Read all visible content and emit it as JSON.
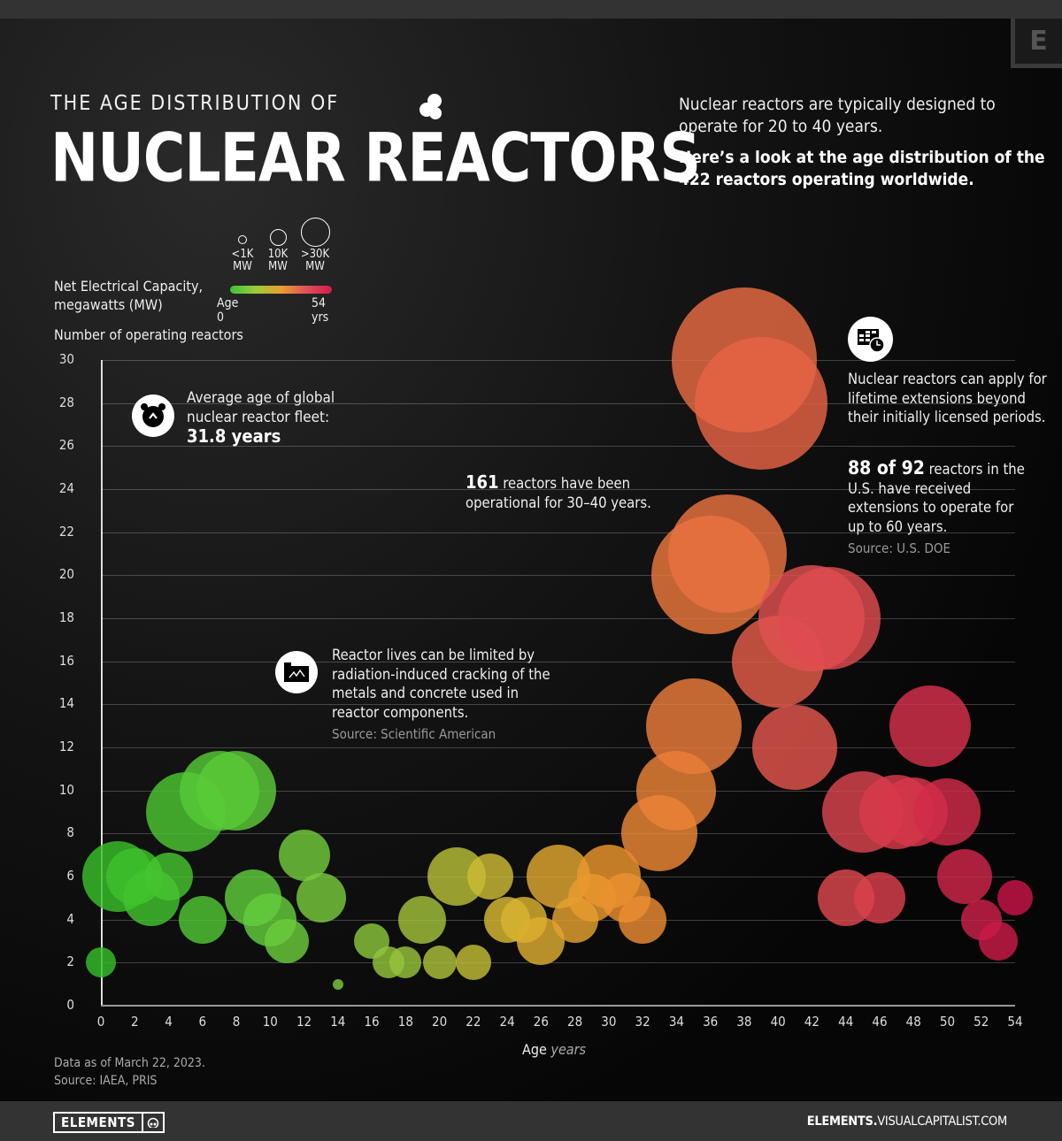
{
  "header": {
    "kicker": "THE AGE DISTRIBUTION OF",
    "title": "NUCLEAR REACTORS",
    "corner_badge": "E",
    "intro_line": "Nuclear reactors are typically designed to operate for 20 to 40 years.",
    "intro_bold": "Here’s a look at the age distribution of the 422 reactors operating worldwide."
  },
  "legend": {
    "size_title": "Net Electrical Capacity, megawatts (MW)",
    "sizes": [
      {
        "label1": "<1K",
        "label2": "MW"
      },
      {
        "label1": "10K",
        "label2": "MW"
      },
      {
        "label1": ">30K",
        "label2": "MW"
      }
    ],
    "color_start": "Age 0",
    "color_end": "54 yrs",
    "colors": {
      "start": "#3ac33a",
      "mid": "#e8a030",
      "end": "#d01e4a"
    }
  },
  "annotations": {
    "avg_age_text": "Average age of global nuclear reactor fleet:",
    "avg_age_value": "31.8 years",
    "ops_count": "161",
    "ops_text": " reactors have been operational for 30–40 years.",
    "cracking_text": "Reactor lives can be limited by radiation-induced cracking of the metals and concrete used in reactor components.",
    "cracking_source": "Source: Scientific American",
    "extension_text": "Nuclear reactors can apply for lifetime extensions beyond their initially licensed periods.",
    "us_count": "88 of 92",
    "us_text": " reactors in the U.S. have received extensions to operate for up to 60 years.",
    "us_source": "Source: U.S. DOE"
  },
  "footnote": {
    "date": "Data as of March 22, 2023.",
    "source": "Source: IAEA, PRIS"
  },
  "footer": {
    "brand": "ELEMENTS",
    "url_bold": "ELEMENTS.",
    "url_rest": "VISUALCAPITALIST.COM"
  },
  "chart_data": {
    "type": "scatter",
    "subtype": "bubble",
    "title": "The Age Distribution of Nuclear Reactors",
    "xlabel": "Age years",
    "ylabel": "Number of operating reactors",
    "xlim": [
      0,
      54
    ],
    "ylim": [
      0,
      30
    ],
    "x_ticks": [
      0,
      2,
      4,
      6,
      8,
      10,
      12,
      14,
      16,
      18,
      20,
      22,
      24,
      26,
      28,
      30,
      32,
      34,
      36,
      38,
      40,
      42,
      44,
      46,
      48,
      50,
      52,
      54
    ],
    "y_ticks": [
      0,
      2,
      4,
      6,
      8,
      10,
      12,
      14,
      16,
      18,
      20,
      22,
      24,
      26,
      28,
      30
    ],
    "grid": true,
    "size_encoding": "Net Electrical Capacity (MW)",
    "color_encoding": "Age (green=0 → red=54 yrs)",
    "points": [
      {
        "age": 0,
        "count": 2,
        "r": 17
      },
      {
        "age": 1,
        "count": 6,
        "r": 40
      },
      {
        "age": 2,
        "count": 6,
        "r": 32
      },
      {
        "age": 3,
        "count": 5,
        "r": 32
      },
      {
        "age": 4,
        "count": 6,
        "r": 27
      },
      {
        "age": 5,
        "count": 9,
        "r": 45
      },
      {
        "age": 6,
        "count": 4,
        "r": 27
      },
      {
        "age": 7,
        "count": 10,
        "r": 45
      },
      {
        "age": 8,
        "count": 10,
        "r": 45
      },
      {
        "age": 9,
        "count": 5,
        "r": 32
      },
      {
        "age": 10,
        "count": 4,
        "r": 30
      },
      {
        "age": 11,
        "count": 3,
        "r": 25
      },
      {
        "age": 12,
        "count": 7,
        "r": 29
      },
      {
        "age": 13,
        "count": 5,
        "r": 28
      },
      {
        "age": 14,
        "count": 1,
        "r": 6
      },
      {
        "age": 16,
        "count": 3,
        "r": 20
      },
      {
        "age": 17,
        "count": 2,
        "r": 18
      },
      {
        "age": 18,
        "count": 2,
        "r": 18
      },
      {
        "age": 19,
        "count": 4,
        "r": 27
      },
      {
        "age": 20,
        "count": 2,
        "r": 19
      },
      {
        "age": 21,
        "count": 6,
        "r": 33
      },
      {
        "age": 22,
        "count": 2,
        "r": 20
      },
      {
        "age": 23,
        "count": 6,
        "r": 26
      },
      {
        "age": 24,
        "count": 4,
        "r": 26
      },
      {
        "age": 25,
        "count": 4,
        "r": 26
      },
      {
        "age": 26,
        "count": 3,
        "r": 27
      },
      {
        "age": 27,
        "count": 6,
        "r": 36
      },
      {
        "age": 28,
        "count": 4,
        "r": 26
      },
      {
        "age": 29,
        "count": 5,
        "r": 27
      },
      {
        "age": 30,
        "count": 6,
        "r": 36
      },
      {
        "age": 31,
        "count": 5,
        "r": 28
      },
      {
        "age": 32,
        "count": 4,
        "r": 27
      },
      {
        "age": 33,
        "count": 8,
        "r": 43
      },
      {
        "age": 34,
        "count": 10,
        "r": 45
      },
      {
        "age": 35,
        "count": 13,
        "r": 54
      },
      {
        "age": 36,
        "count": 20,
        "r": 67
      },
      {
        "age": 37,
        "count": 21,
        "r": 67
      },
      {
        "age": 38,
        "count": 30,
        "r": 82
      },
      {
        "age": 39,
        "count": 28,
        "r": 75
      },
      {
        "age": 40,
        "count": 16,
        "r": 52
      },
      {
        "age": 41,
        "count": 12,
        "r": 48
      },
      {
        "age": 42,
        "count": 18,
        "r": 60
      },
      {
        "age": 43,
        "count": 18,
        "r": 58
      },
      {
        "age": 44,
        "count": 5,
        "r": 32
      },
      {
        "age": 45,
        "count": 9,
        "r": 46
      },
      {
        "age": 46,
        "count": 5,
        "r": 29
      },
      {
        "age": 47,
        "count": 9,
        "r": 42
      },
      {
        "age": 48,
        "count": 9,
        "r": 39
      },
      {
        "age": 49,
        "count": 13,
        "r": 46
      },
      {
        "age": 50,
        "count": 9,
        "r": 38
      },
      {
        "age": 51,
        "count": 6,
        "r": 31
      },
      {
        "age": 52,
        "count": 4,
        "r": 23
      },
      {
        "age": 53,
        "count": 3,
        "r": 22
      },
      {
        "age": 54,
        "count": 5,
        "r": 20
      }
    ]
  }
}
